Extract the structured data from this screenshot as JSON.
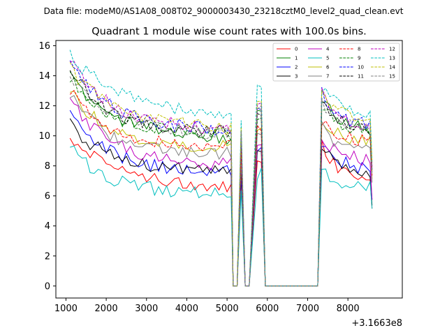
{
  "chart_data": {
    "type": "line",
    "suptitle": "Data file: modeM0/AS1A08_008T02_9000003430_23218cztM0_level2_quad_clean.evt",
    "title": "Quadrant 1 module wise count rates with 100.0s bins.",
    "xlabel": "",
    "ylabel": "",
    "x_offset_label": "+3.1663e8",
    "xlim": [
      750,
      9350
    ],
    "ylim": [
      -0.8,
      16.35
    ],
    "xticks": [
      1000,
      2000,
      3000,
      4000,
      5000,
      6000,
      7000,
      8000
    ],
    "xtick_labels": [
      "1000",
      "2000",
      "3000",
      "4000",
      "5000",
      "6000",
      "7000",
      "8000"
    ],
    "yticks": [
      0,
      2,
      4,
      6,
      8,
      10,
      12,
      14,
      16
    ],
    "ytick_labels": [
      "0",
      "2",
      "4",
      "6",
      "8",
      "10",
      "12",
      "14",
      "16"
    ],
    "legend_location": "top-right",
    "legend_columns": 4,
    "segments": [
      {
        "x_start": 1100,
        "n": 41,
        "step": 100
      },
      {
        "x_start": 5350,
        "n": 1,
        "step": 100
      },
      {
        "x_start": 5750,
        "n": 3,
        "step": 100
      },
      {
        "x_start": 7350,
        "n": 13,
        "step": 100
      },
      {
        "x_start": 8600,
        "n": 1,
        "step": 100
      }
    ],
    "gap_x": [
      5150,
      5250,
      5450,
      5550,
      6050,
      6150,
      6250,
      6350,
      6450,
      6550,
      6650,
      6750,
      6850,
      6950,
      7050,
      7150,
      7250
    ],
    "series": [
      {
        "name": "0",
        "color": "#ff0000",
        "dash": "solid",
        "start": 10.0,
        "mid": 7.0,
        "end": 6.5,
        "peak": 9.5,
        "tail": 6.8,
        "spike": 8.0
      },
      {
        "name": "1",
        "color": "#008000",
        "dash": "solid",
        "start": 14.0,
        "mid": 10.0,
        "end": 9.8,
        "peak": 12.5,
        "tail": 10.3,
        "spike": 11.5
      },
      {
        "name": "2",
        "color": "#0000ff",
        "dash": "solid",
        "start": 11.5,
        "mid": 7.5,
        "end": 7.5,
        "peak": 9.5,
        "tail": 7.6,
        "spike": 9.0
      },
      {
        "name": "3",
        "color": "#000000",
        "dash": "solid",
        "start": 10.8,
        "mid": 7.5,
        "end": 7.8,
        "peak": 9.3,
        "tail": 7.5,
        "spike": 9.0
      },
      {
        "name": "4",
        "color": "#bf00bf",
        "dash": "solid",
        "start": 12.5,
        "mid": 8.0,
        "end": 8.0,
        "peak": 10.0,
        "tail": 8.2,
        "spike": 9.5
      },
      {
        "name": "5",
        "color": "#00bfbf",
        "dash": "solid",
        "start": 9.2,
        "mid": 6.0,
        "end": 6.3,
        "peak": 7.8,
        "tail": 6.5,
        "spike": 7.5
      },
      {
        "name": "6",
        "color": "#bfbf00",
        "dash": "solid",
        "start": 13.0,
        "mid": 9.0,
        "end": 9.3,
        "peak": 11.0,
        "tail": 9.5,
        "spike": 10.5
      },
      {
        "name": "7",
        "color": "#808080",
        "dash": "solid",
        "start": 12.8,
        "mid": 8.5,
        "end": 8.8,
        "peak": 10.5,
        "tail": 8.8,
        "spike": 10.2
      },
      {
        "name": "8",
        "color": "#ff0000",
        "dash": "dashed",
        "start": 13.0,
        "mid": 9.0,
        "end": 9.4,
        "peak": 11.0,
        "tail": 9.5,
        "spike": 10.5
      },
      {
        "name": "9",
        "color": "#008000",
        "dash": "dashed",
        "start": 14.0,
        "mid": 10.0,
        "end": 10.0,
        "peak": 12.2,
        "tail": 10.0,
        "spike": 11.5
      },
      {
        "name": "10",
        "color": "#0000ff",
        "dash": "dashed",
        "start": 14.8,
        "mid": 10.5,
        "end": 10.3,
        "peak": 12.8,
        "tail": 10.5,
        "spike": 12.0
      },
      {
        "name": "11",
        "color": "#000000",
        "dash": "dashed",
        "start": 14.5,
        "mid": 10.0,
        "end": 10.2,
        "peak": 12.5,
        "tail": 10.2,
        "spike": 11.8
      },
      {
        "name": "12",
        "color": "#bf00bf",
        "dash": "dashed",
        "start": 15.0,
        "mid": 10.5,
        "end": 10.4,
        "peak": 12.8,
        "tail": 10.5,
        "spike": 12.2
      },
      {
        "name": "13",
        "color": "#00bfbf",
        "dash": "dashed",
        "start": 15.5,
        "mid": 12.0,
        "end": 11.0,
        "peak": 13.3,
        "tail": 11.3,
        "spike": 13.5
      },
      {
        "name": "14",
        "color": "#bfbf00",
        "dash": "dashed",
        "start": 14.5,
        "mid": 11.0,
        "end": 10.4,
        "peak": 12.9,
        "tail": 10.9,
        "spike": 12.5
      },
      {
        "name": "15",
        "color": "#808080",
        "dash": "dashed",
        "start": 14.0,
        "mid": 10.3,
        "end": 10.0,
        "peak": 12.4,
        "tail": 10.2,
        "spike": 12.0
      }
    ]
  }
}
